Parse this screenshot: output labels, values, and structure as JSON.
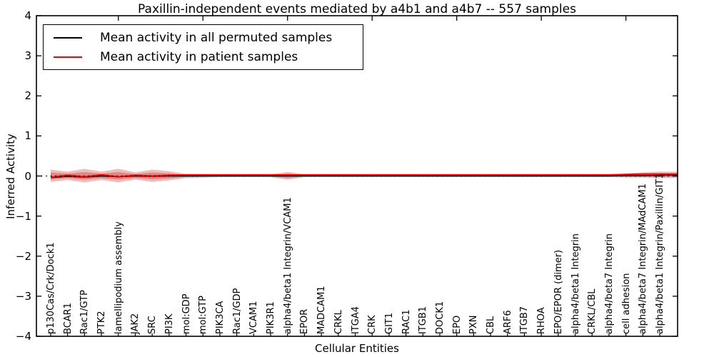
{
  "chart_data": {
    "type": "line",
    "title": "Paxillin-independent events mediated by a4b1 and a4b7 -- 557 samples",
    "xlabel": "Cellular Entities",
    "ylabel": "Inferred Activity",
    "ylim": [
      -4,
      4
    ],
    "yticks": [
      4,
      3,
      2,
      1,
      0,
      -1,
      -2,
      -3,
      -4
    ],
    "grid": false,
    "legend_position": "upper left",
    "categories": [
      "p130Cas/Crk/Dock1",
      "BCAR1",
      "Rac1/GTP",
      "PTK2",
      "lamellipodium assembly",
      "JAK2",
      "SRC",
      "PI3K",
      "mol:GDP",
      "mol:GTP",
      "PIK3CA",
      "Rac1/GDP",
      "VCAM1",
      "PIK3R1",
      "alpha4/beta1 Integrin/VCAM1",
      "EPOR",
      "MADCAM1",
      "CRKL",
      "ITGA4",
      "CRK",
      "GIT1",
      "RAC1",
      "ITGB1",
      "DOCK1",
      "EPO",
      "PXN",
      "CBL",
      "ARF6",
      "ITGB7",
      "RHOA",
      "EPO/EPOR (dimer)",
      "alpha4/beta1 Integrin",
      "CRKL/CBL",
      "alpha4/beta7 Integrin",
      "cell adhesion",
      "alpha4/beta7 Integrin/MAdCAM1",
      "alpha4/beta1 Integrin/Paxillin/GIT1"
    ],
    "series": [
      {
        "name": "Mean activity in all permuted samples",
        "color": "#000000",
        "values": [
          -0.04,
          -0.01,
          -0.03,
          0,
          -0.02,
          0,
          -0.01,
          0,
          0,
          0,
          0,
          0,
          0,
          0,
          0,
          0,
          0,
          0,
          0,
          0,
          0,
          0,
          0,
          0,
          0,
          0,
          0,
          0,
          0,
          0,
          0,
          0,
          0,
          0,
          0.01,
          0.01,
          0.02
        ]
      },
      {
        "name": "Mean activity in patient samples",
        "color": "#ff0000",
        "values": [
          -0.03,
          0.02,
          -0.02,
          0.03,
          -0.02,
          0.02,
          0,
          0.02,
          0.03,
          0.03,
          0.03,
          0.03,
          0.03,
          0.03,
          0.03,
          0.03,
          0.03,
          0.03,
          0.03,
          0.03,
          0.03,
          0.03,
          0.03,
          0.03,
          0.03,
          0.03,
          0.03,
          0.03,
          0.03,
          0.03,
          0.03,
          0.03,
          0.03,
          0.03,
          0.04,
          0.05,
          0.05
        ]
      }
    ],
    "band": {
      "name": "patient-sample activity spread",
      "color": "#cc2222",
      "upper": [
        0.16,
        0.11,
        0.18,
        0.11,
        0.18,
        0.09,
        0.16,
        0.12,
        0.05,
        0.04,
        0.04,
        0.04,
        0.03,
        0.04,
        0.1,
        0.04,
        0.03,
        0.03,
        0.03,
        0.03,
        0.03,
        0.03,
        0.03,
        0.03,
        0.03,
        0.03,
        0.03,
        0.03,
        0.03,
        0.03,
        0.03,
        0.04,
        0.04,
        0.04,
        0.06,
        0.09,
        0.11
      ],
      "lower": [
        -0.15,
        -0.1,
        -0.16,
        -0.1,
        -0.16,
        -0.09,
        -0.15,
        -0.11,
        -0.05,
        -0.04,
        -0.03,
        -0.03,
        -0.03,
        -0.03,
        -0.09,
        -0.03,
        -0.03,
        -0.03,
        -0.03,
        -0.03,
        -0.03,
        -0.03,
        -0.03,
        -0.03,
        -0.03,
        -0.03,
        -0.03,
        -0.03,
        -0.03,
        -0.03,
        -0.03,
        -0.03,
        -0.03,
        -0.03,
        -0.04,
        -0.04,
        -0.05
      ]
    },
    "zero_line": {
      "y": 0,
      "style": "dotted",
      "color": "#000000"
    }
  }
}
